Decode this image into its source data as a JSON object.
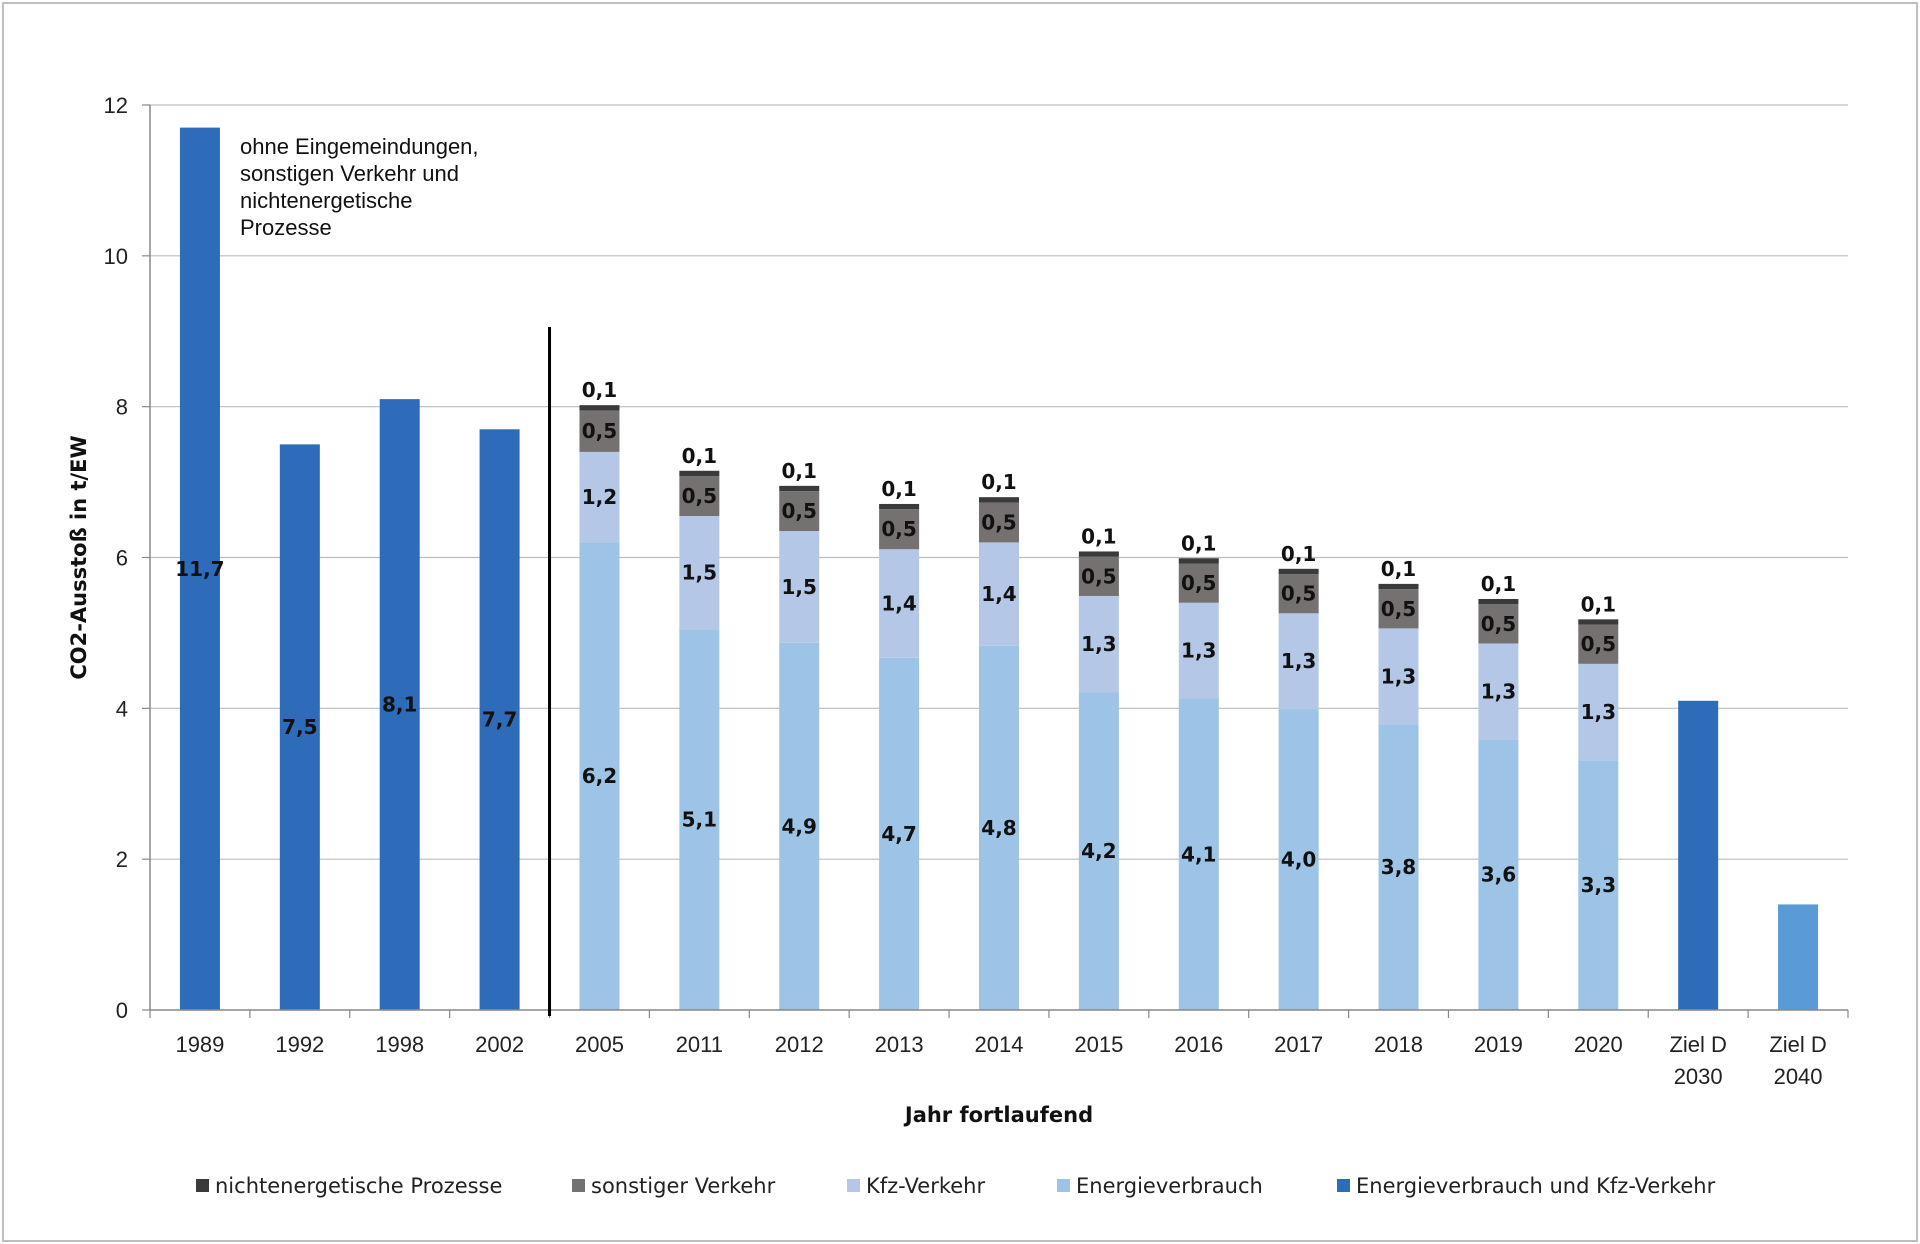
{
  "chart_data": {
    "type": "bar",
    "stacked": true,
    "xlabel": "Jahr fortlaufend",
    "ylabel": "CO2-Ausstoß in t/EW",
    "ylim": [
      0,
      12
    ],
    "yticks": [
      "0",
      "2",
      "4",
      "6",
      "8",
      "10",
      "12"
    ],
    "grid": true,
    "legend_position": "bottom",
    "categories": [
      [
        "1989"
      ],
      [
        "1992"
      ],
      [
        "1998"
      ],
      [
        "2002"
      ],
      [
        "2005"
      ],
      [
        "2011"
      ],
      [
        "2012"
      ],
      [
        "2013"
      ],
      [
        "2014"
      ],
      [
        "2015"
      ],
      [
        "2016"
      ],
      [
        "2017"
      ],
      [
        "2018"
      ],
      [
        "2019"
      ],
      [
        "2020"
      ],
      [
        "Ziel D",
        "2030"
      ],
      [
        "Ziel D",
        "2040"
      ]
    ],
    "series": [
      {
        "name": "Energieverbrauch und Kfz-Verkehr",
        "color": "#2e6bb8",
        "values": [
          11.7,
          7.5,
          8.1,
          7.7,
          null,
          null,
          null,
          null,
          null,
          null,
          null,
          null,
          null,
          null,
          null,
          4.1,
          null
        ],
        "labels": [
          "11,7",
          "7,5",
          "8,1",
          "7,7",
          "",
          "",
          "",
          "",
          "",
          "",
          "",
          "",
          "",
          "",
          "",
          "",
          ""
        ]
      },
      {
        "name": "Energieverbrauch",
        "color": "#9dc3e6",
        "values": [
          null,
          null,
          null,
          null,
          6.2,
          5.05,
          4.87,
          4.67,
          4.83,
          4.21,
          4.13,
          3.99,
          3.79,
          3.59,
          3.31,
          null,
          null
        ],
        "labels": [
          "",
          "",
          "",
          "",
          "6,2",
          "5,1",
          "4,9",
          "4,7",
          "4,8",
          "4,2",
          "4,1",
          "4,0",
          "3,8",
          "3,6",
          "3,3",
          "",
          ""
        ]
      },
      {
        "name": "Kfz-Verkehr",
        "color": "#b4c7e7",
        "values": [
          null,
          null,
          null,
          null,
          1.2,
          1.5,
          1.48,
          1.44,
          1.37,
          1.28,
          1.27,
          1.27,
          1.27,
          1.27,
          1.28,
          null,
          null
        ],
        "labels": [
          "",
          "",
          "",
          "",
          "1,2",
          "1,5",
          "1,5",
          "1,4",
          "1,4",
          "1,3",
          "1,3",
          "1,3",
          "1,3",
          "1,3",
          "1,3",
          "",
          ""
        ]
      },
      {
        "name": "sonstiger Verkehr",
        "color": "#767171",
        "values": [
          null,
          null,
          null,
          null,
          0.55,
          0.53,
          0.53,
          0.53,
          0.53,
          0.52,
          0.52,
          0.52,
          0.52,
          0.52,
          0.52,
          null,
          null
        ],
        "labels": [
          "",
          "",
          "",
          "",
          "0,5",
          "0,5",
          "0,5",
          "0,5",
          "0,5",
          "0,5",
          "0,5",
          "0,5",
          "0,5",
          "0,5",
          "0,5",
          "",
          ""
        ]
      },
      {
        "name": "nichtenergetische Prozesse",
        "color": "#3a3a3a",
        "values": [
          null,
          null,
          null,
          null,
          0.07,
          0.07,
          0.07,
          0.07,
          0.07,
          0.07,
          0.07,
          0.07,
          0.07,
          0.07,
          0.07,
          null,
          null
        ],
        "labels": [
          "",
          "",
          "",
          "",
          "0,1",
          "0,1",
          "0,1",
          "0,1",
          "0,1",
          "0,1",
          "0,1",
          "0,1",
          "0,1",
          "0,1",
          "0,1",
          "",
          ""
        ]
      },
      {
        "name": "",
        "color": "#5b9bd5",
        "in_legend": false,
        "values": [
          null,
          null,
          null,
          null,
          null,
          null,
          null,
          null,
          null,
          null,
          null,
          null,
          null,
          null,
          null,
          null,
          1.4
        ],
        "labels": [
          "",
          "",
          "",
          "",
          "",
          "",
          "",
          "",
          "",
          "",
          "",
          "",
          "",
          "",
          "",
          "",
          ""
        ]
      }
    ],
    "legend_order": [
      "nichtenergetische Prozesse",
      "sonstiger Verkehr",
      "Kfz-Verkehr",
      "Energieverbrauch",
      "Energieverbrauch und Kfz-Verkehr"
    ],
    "annotation": [
      "ohne Eingemeindungen,",
      "sonstigen Verkehr und",
      "nichtenergetische",
      "Prozesse"
    ],
    "divider_after_category": "2002"
  }
}
